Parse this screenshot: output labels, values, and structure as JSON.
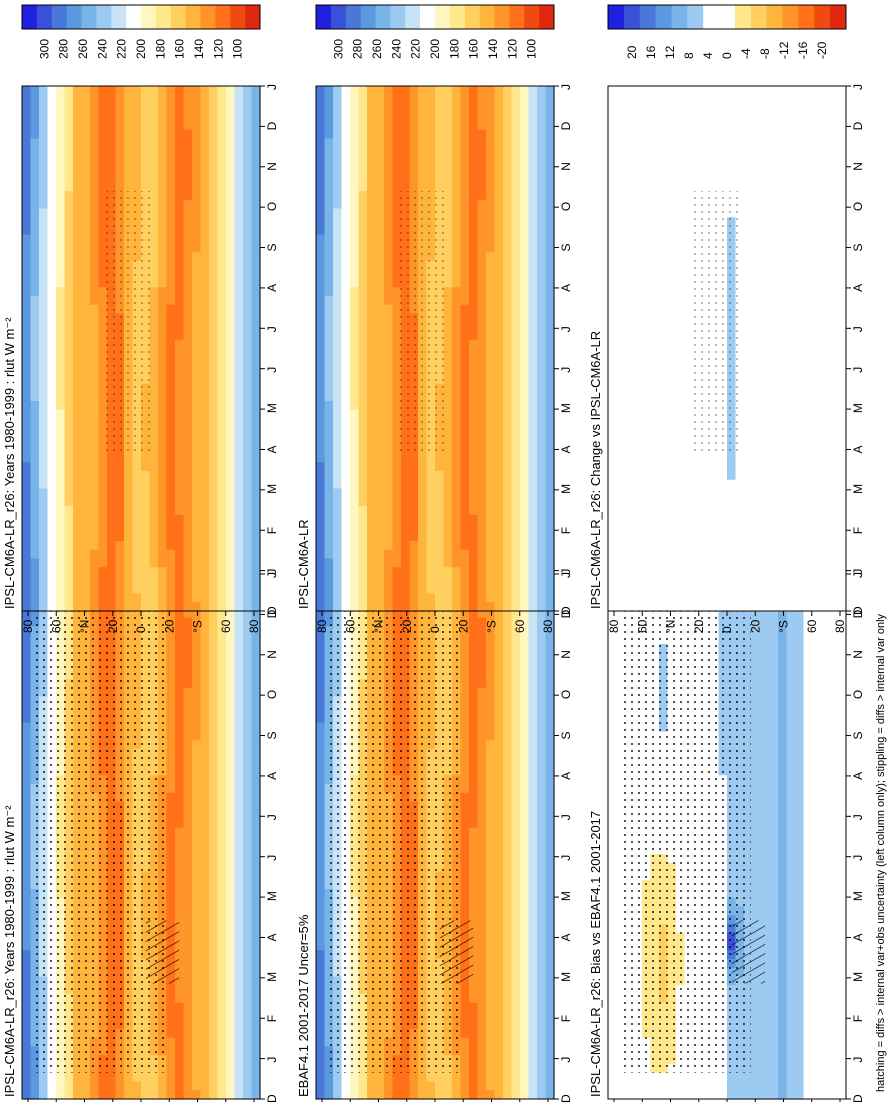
{
  "figure": {
    "footer": "hatching = diffs > internal var+obs uncertainty (left column only); stippling = diffs > internal var only",
    "month_ticks": [
      "D",
      "J",
      "F",
      "M",
      "A",
      "M",
      "J",
      "J",
      "A",
      "S",
      "O",
      "N",
      "D",
      "J"
    ],
    "lat_ticks": [
      "80",
      "60",
      "°N",
      "20",
      "0",
      "20",
      "°S",
      "60",
      "80"
    ]
  },
  "colors": {
    "abs_scale": [
      "#2020e0",
      "#3a50d8",
      "#4a78d8",
      "#5a98e0",
      "#78b4e8",
      "#9ccaf0",
      "#c8e2f6",
      "#ffffff",
      "#fff6c0",
      "#ffe88c",
      "#ffd060",
      "#ffb43c",
      "#ff9428",
      "#ff7018",
      "#f04a10",
      "#e02810"
    ],
    "diff_scale": [
      "#2020e0",
      "#3a50d8",
      "#4a78d8",
      "#5a98e0",
      "#78b4e8",
      "#9ccaf0",
      "#ffffff",
      "#ffffff",
      "#ffe88c",
      "#ffd060",
      "#ffb43c",
      "#ff9428",
      "#ff7018",
      "#f04a10",
      "#e02810"
    ]
  },
  "chart_data": [
    {
      "type": "heatmap",
      "title": "IPSL-CM6A-LR_r26: Years 1980-1999 : rlut W m⁻²",
      "kind": "abs",
      "x": [
        "D",
        "J",
        "F",
        "M",
        "A",
        "M",
        "J",
        "J",
        "A",
        "S",
        "O",
        "N",
        "D",
        "J"
      ],
      "y": [
        "80",
        "60",
        "°N",
        "20",
        "0",
        "20",
        "°S",
        "60",
        "80"
      ],
      "colorbar_ticks": [
        "300",
        "280",
        "260",
        "240",
        "220",
        "200",
        "180",
        "160",
        "140",
        "120",
        "100"
      ],
      "colorbar_range": [
        90,
        310
      ],
      "hatching": true,
      "stippling": "dense"
    },
    {
      "type": "heatmap",
      "title": "IPSL-CM6A-LR_r26: Years 1980-1999 : rlut W m⁻²",
      "kind": "abs",
      "x": [
        "D",
        "J",
        "F",
        "M",
        "A",
        "M",
        "J",
        "J",
        "A",
        "S",
        "O",
        "N",
        "D",
        "J"
      ],
      "y": [
        "80",
        "60",
        "°N",
        "20",
        "0",
        "20",
        "°S",
        "60",
        "80"
      ],
      "colorbar_ticks": [
        "300",
        "280",
        "260",
        "240",
        "220",
        "200",
        "180",
        "160",
        "140",
        "120",
        "100"
      ],
      "colorbar_range": [
        90,
        310
      ],
      "hatching": false,
      "stippling": "sparse"
    },
    {
      "type": "heatmap",
      "title": "EBAF4.1 2001-2017 Uncer=5%",
      "kind": "abs",
      "x": [
        "D",
        "J",
        "F",
        "M",
        "A",
        "M",
        "J",
        "J",
        "A",
        "S",
        "O",
        "N",
        "D",
        "J"
      ],
      "y": [
        "80",
        "60",
        "°N",
        "20",
        "0",
        "20",
        "°S",
        "60",
        "80"
      ],
      "colorbar_ticks": [
        "300",
        "280",
        "260",
        "240",
        "220",
        "200",
        "180",
        "160",
        "140",
        "120",
        "100"
      ],
      "colorbar_range": [
        90,
        310
      ],
      "hatching": true,
      "stippling": "dense"
    },
    {
      "type": "heatmap",
      "title": "IPSL-CM6A-LR",
      "kind": "abs",
      "x": [
        "D",
        "J",
        "F",
        "M",
        "A",
        "M",
        "J",
        "J",
        "A",
        "S",
        "O",
        "N",
        "D",
        "J"
      ],
      "y": [
        "80",
        "60",
        "°N",
        "20",
        "0",
        "20",
        "°S",
        "60",
        "80"
      ],
      "colorbar_ticks": [
        "300",
        "280",
        "260",
        "240",
        "220",
        "200",
        "180",
        "160",
        "140",
        "120",
        "100"
      ],
      "colorbar_range": [
        90,
        310
      ],
      "hatching": false,
      "stippling": "sparse"
    },
    {
      "type": "heatmap",
      "title": "IPSL-CM6A-LR_r26: Bias vs EBAF4.1 2001-2017",
      "kind": "bias",
      "x": [
        "D",
        "J",
        "F",
        "M",
        "A",
        "M",
        "J",
        "J",
        "A",
        "S",
        "O",
        "N",
        "D",
        "J"
      ],
      "y": [
        "80",
        "60",
        "°N",
        "20",
        "0",
        "20",
        "°S",
        "60",
        "80"
      ],
      "colorbar_ticks": [
        "20",
        "16",
        "12",
        "8",
        "4",
        "0",
        "-4",
        "-8",
        "-12",
        "-16",
        "-20"
      ],
      "colorbar_range": [
        -22,
        22
      ],
      "hatching": true,
      "stippling": "dense"
    },
    {
      "type": "heatmap",
      "title": "IPSL-CM6A-LR_r26: Change vs IPSL-CM6A-LR",
      "kind": "change",
      "x": [
        "D",
        "J",
        "F",
        "M",
        "A",
        "M",
        "J",
        "J",
        "A",
        "S",
        "O",
        "N",
        "D",
        "J"
      ],
      "y": [
        "80",
        "60",
        "°N",
        "20",
        "0",
        "20",
        "°S",
        "60",
        "80"
      ],
      "colorbar_ticks": [
        "20",
        "16",
        "12",
        "8",
        "4",
        "0",
        "-4",
        "-8",
        "-12",
        "-16",
        "-20"
      ],
      "colorbar_range": [
        -22,
        22
      ],
      "hatching": false,
      "stippling": "sparse"
    }
  ]
}
